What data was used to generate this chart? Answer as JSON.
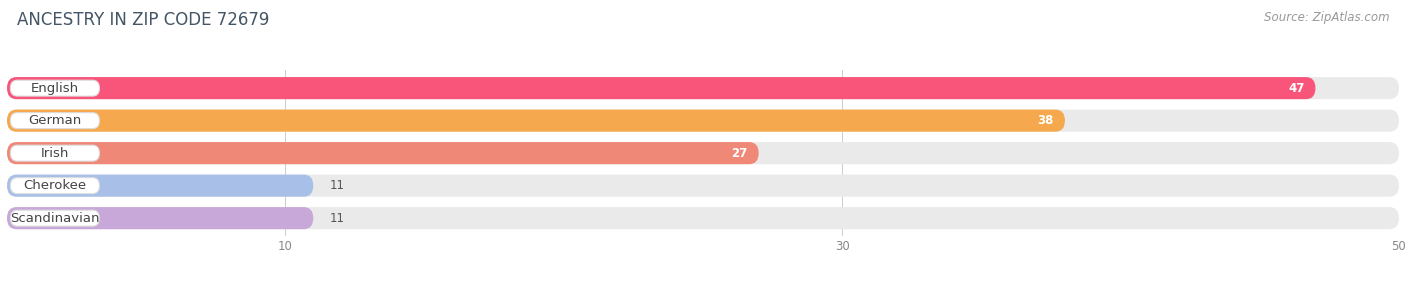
{
  "title": "ANCESTRY IN ZIP CODE 72679",
  "source": "Source: ZipAtlas.com",
  "categories": [
    "English",
    "German",
    "Irish",
    "Cherokee",
    "Scandinavian"
  ],
  "values": [
    47,
    38,
    27,
    11,
    11
  ],
  "bar_colors": [
    "#F9547A",
    "#F5A84E",
    "#F08878",
    "#A8C0E8",
    "#C8A8D8"
  ],
  "bg_color": "#EAEAEA",
  "xlim_max": 50,
  "xticks": [
    10,
    30,
    50
  ],
  "figsize": [
    14.06,
    2.81
  ],
  "dpi": 100,
  "background_color": "#FFFFFF",
  "title_fontsize": 12,
  "source_fontsize": 8.5,
  "label_fontsize": 9.5,
  "value_fontsize": 8.5,
  "bar_height": 0.68,
  "value_threshold_inside": 20
}
